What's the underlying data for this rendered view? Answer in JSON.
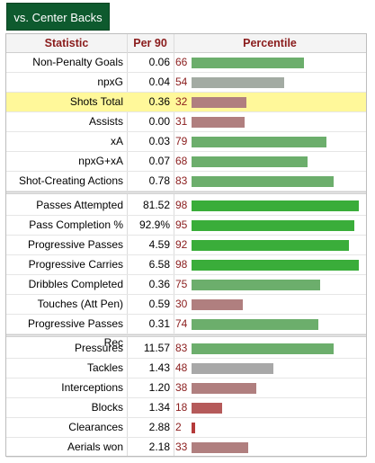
{
  "tab_label": "vs. Center Backs",
  "headers": {
    "statistic": "Statistic",
    "per90": "Per 90",
    "percentile": "Percentile"
  },
  "colors": {
    "header_text": "#8a1c1c",
    "tab_bg": "#0e5a2e",
    "highlight": "#fff89a",
    "bar_dark_green": "#3aad3a",
    "bar_green": "#6cae6c",
    "bar_gray": "#a8a8a8",
    "bar_rose": "#b07f7f",
    "bar_red": "#b55a5a"
  },
  "groups": [
    [
      {
        "stat": "Non-Penalty Goals",
        "per90": "0.06",
        "pct": "66",
        "color": "#6cae6c"
      },
      {
        "stat": "npxG",
        "per90": "0.04",
        "pct": "54",
        "color": "#a3aba3"
      },
      {
        "stat": "Shots Total",
        "per90": "0.36",
        "pct": "32",
        "color": "#b07f7f",
        "highlight": true
      },
      {
        "stat": "Assists",
        "per90": "0.00",
        "pct": "31",
        "color": "#b07f7f"
      },
      {
        "stat": "xA",
        "per90": "0.03",
        "pct": "79",
        "color": "#6cae6c"
      },
      {
        "stat": "npxG+xA",
        "per90": "0.07",
        "pct": "68",
        "color": "#6cae6c"
      },
      {
        "stat": "Shot-Creating Actions",
        "per90": "0.78",
        "pct": "83",
        "color": "#6cae6c"
      }
    ],
    [
      {
        "stat": "Passes Attempted",
        "per90": "81.52",
        "pct": "98",
        "color": "#3aad3a"
      },
      {
        "stat": "Pass Completion %",
        "per90": "92.9%",
        "pct": "95",
        "color": "#3aad3a"
      },
      {
        "stat": "Progressive Passes",
        "per90": "4.59",
        "pct": "92",
        "color": "#3aad3a"
      },
      {
        "stat": "Progressive Carries",
        "per90": "6.58",
        "pct": "98",
        "color": "#3aad3a"
      },
      {
        "stat": "Dribbles Completed",
        "per90": "0.36",
        "pct": "75",
        "color": "#6cae6c"
      },
      {
        "stat": "Touches (Att Pen)",
        "per90": "0.59",
        "pct": "30",
        "color": "#b07f7f"
      },
      {
        "stat": "Progressive Passes Rec",
        "per90": "0.31",
        "pct": "74",
        "color": "#6cae6c"
      }
    ],
    [
      {
        "stat": "Pressures",
        "per90": "11.57",
        "pct": "83",
        "color": "#6cae6c"
      },
      {
        "stat": "Tackles",
        "per90": "1.43",
        "pct": "48",
        "color": "#a8a8a8"
      },
      {
        "stat": "Interceptions",
        "per90": "1.20",
        "pct": "38",
        "color": "#b07f7f"
      },
      {
        "stat": "Blocks",
        "per90": "1.34",
        "pct": "18",
        "color": "#b55a5a"
      },
      {
        "stat": "Clearances",
        "per90": "2.88",
        "pct": "2",
        "color": "#b53a3a"
      },
      {
        "stat": "Aerials won",
        "per90": "2.18",
        "pct": "33",
        "color": "#b07f7f"
      }
    ]
  ]
}
